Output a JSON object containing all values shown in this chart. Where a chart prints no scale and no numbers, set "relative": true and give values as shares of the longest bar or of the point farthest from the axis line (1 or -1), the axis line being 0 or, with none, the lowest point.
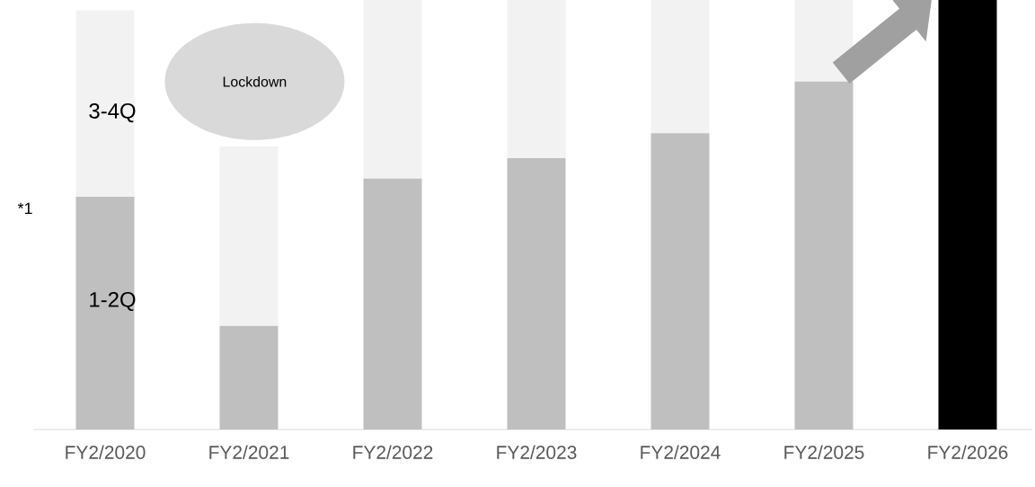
{
  "chart_data": {
    "type": "bar",
    "stacked": true,
    "relative": true,
    "categories": [
      "FY2/2020",
      "FY2/2021",
      "FY2/2022",
      "FY2/2023",
      "FY2/2024",
      "FY2/2025",
      "FY2/2026"
    ],
    "series": [
      {
        "name": "1-2Q",
        "color": "#bfbfbf",
        "values": [
          0.542,
          0.241,
          0.584,
          0.632,
          0.69,
          0.81,
          null
        ]
      },
      {
        "name": "3-4Q",
        "color": "#f2f2f2",
        "values": [
          0.434,
          0.418,
          0.416,
          0.368,
          0.31,
          0.19,
          null
        ]
      },
      {
        "color": "#000000",
        "values": [
          null,
          null,
          null,
          null,
          null,
          null,
          1
        ]
      }
    ],
    "annotations": [
      "Lockdown",
      "*1"
    ]
  }
}
